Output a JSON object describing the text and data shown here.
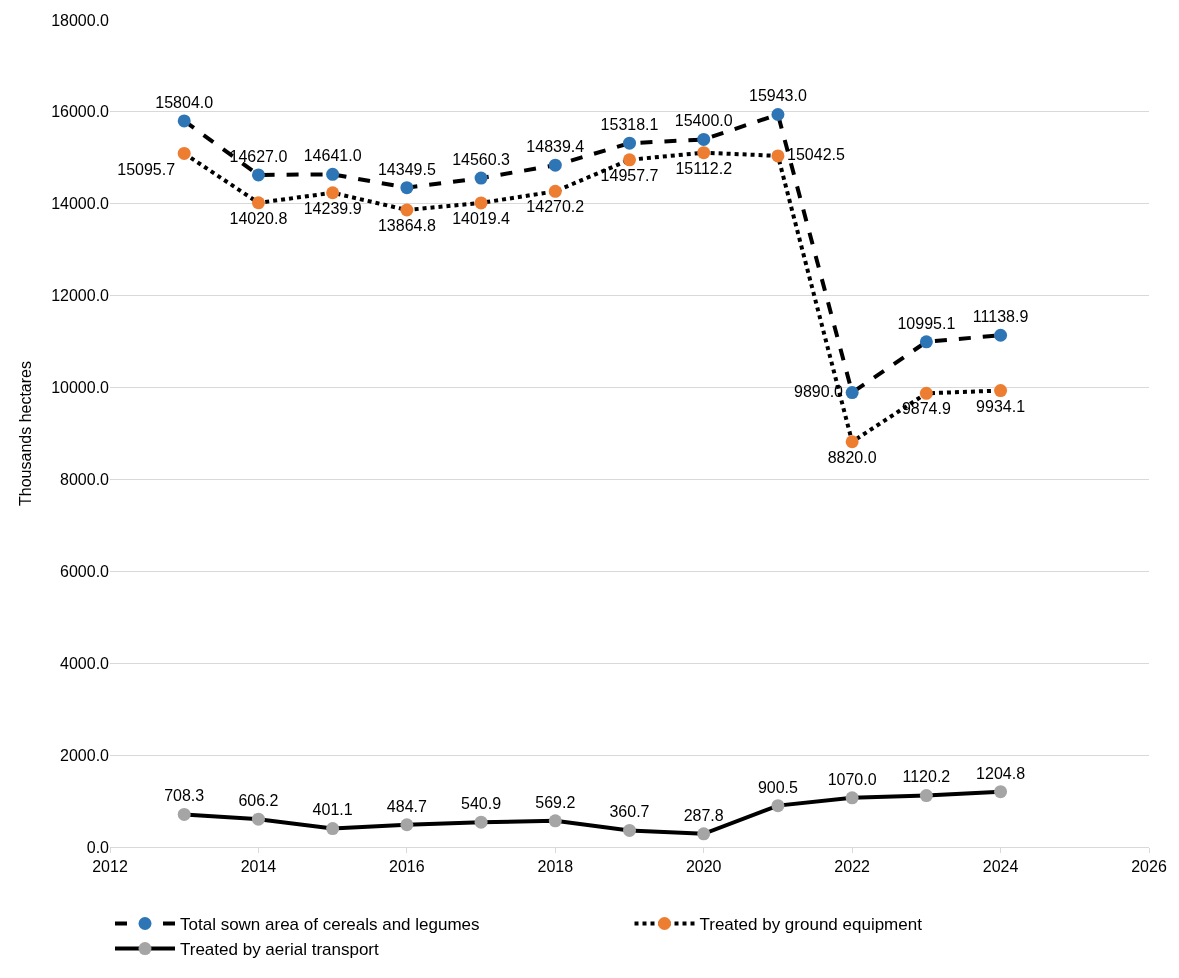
{
  "chart_data": {
    "type": "line",
    "x": [
      2013,
      2014,
      2015,
      2016,
      2017,
      2018,
      2019,
      2020,
      2021,
      2022,
      2023,
      2024
    ],
    "ylabel": "Thousands hectares",
    "series": [
      {
        "name": "Total sown area of cereals and legumes",
        "color": "#2e75b6",
        "line_style": "dashed",
        "values": [
          15804.0,
          14627.0,
          14641.0,
          14349.5,
          14560.3,
          14839.4,
          15318.1,
          15400.0,
          15943.0,
          9890.0,
          10995.1,
          11138.9
        ],
        "value_labels": [
          "15804.0",
          "14627.0",
          "14641.0",
          "14349.5",
          "14560.3",
          "14839.4",
          "15318.1",
          "15400.0",
          "15943.0",
          "9890.0",
          "10995.1",
          "11138.9"
        ]
      },
      {
        "name": "Treated by ground equipment",
        "color": "#ed7d31",
        "line_style": "dotted",
        "values": [
          15095.7,
          14020.8,
          14239.9,
          13864.8,
          14019.4,
          14270.2,
          14957.7,
          15112.2,
          15042.5,
          8820.0,
          9874.9,
          9934.1
        ],
        "value_labels": [
          "15095.7",
          "14020.8",
          "14239.9",
          "13864.8",
          "14019.4",
          "14270.2",
          "14957.7",
          "15112.2",
          "15042.5",
          "8820.0",
          "9874.9",
          "9934.1"
        ]
      },
      {
        "name": "Treated by aerial transport",
        "color": "#a5a5a5",
        "line_style": "solid",
        "values": [
          708.3,
          606.2,
          401.1,
          484.7,
          540.9,
          569.2,
          360.7,
          287.8,
          900.5,
          1070.0,
          1120.2,
          1204.8
        ],
        "value_labels": [
          "708.3",
          "606.2",
          "401.1",
          "484.7",
          "540.9",
          "569.2",
          "360.7",
          "287.8",
          "900.5",
          "1070.0",
          "1120.2",
          "1204.8"
        ]
      }
    ],
    "xlim": [
      2012,
      2026
    ],
    "xticks": [
      2012,
      2014,
      2016,
      2018,
      2020,
      2022,
      2024,
      2026
    ],
    "ylim": [
      0,
      18000
    ],
    "yticks": [
      {
        "value": 0,
        "label": "0.0"
      },
      {
        "value": 2000,
        "label": "2000.0"
      },
      {
        "value": 4000,
        "label": "4000.0"
      },
      {
        "value": 6000,
        "label": "6000.0"
      },
      {
        "value": 8000,
        "label": "8000.0"
      },
      {
        "value": 10000,
        "label": "10000.0"
      },
      {
        "value": 12000,
        "label": "12000.0"
      },
      {
        "value": 14000,
        "label": "14000.0"
      },
      {
        "value": 16000,
        "label": "16000.0"
      },
      {
        "value": 18000,
        "label": "18000.0"
      }
    ],
    "grid": "y",
    "legend": "bottom",
    "marker": "circle"
  }
}
